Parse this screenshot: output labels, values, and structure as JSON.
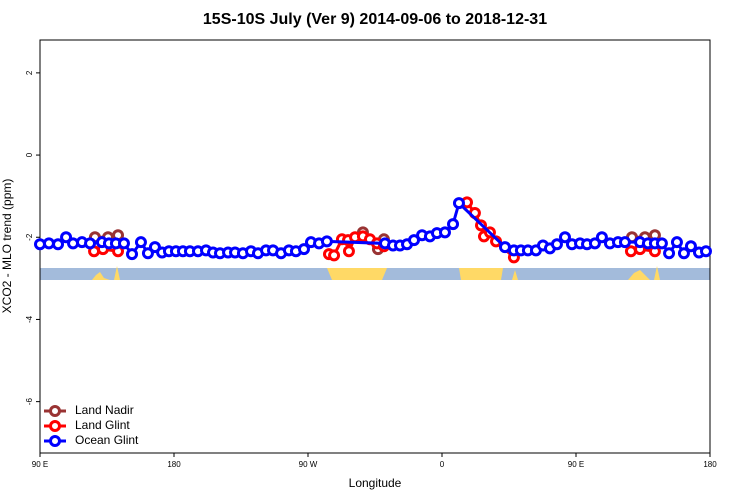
{
  "chart_data": {
    "type": "line",
    "title": "15S-10S July (Ver 9)   2014-09-06 to 2018-12-31",
    "x_label": "Longitude",
    "y_label": "XCO2 - MLO trend (ppm)",
    "xlim": [
      90,
      540
    ],
    "ylim": [
      -7.25,
      2.8
    ],
    "xticks": [
      {
        "value": 90,
        "label": "90 E"
      },
      180,
      {
        "value": 270,
        "label": "90 W"
      },
      {
        "value": 360,
        "label": "0"
      },
      {
        "value": 450,
        "label": "90 E"
      },
      {
        "value": 540,
        "label": "180"
      }
    ],
    "yticks": [
      2,
      0,
      -2,
      -4,
      -6
    ],
    "legend": "bottom-left",
    "series": [
      {
        "name": "Land Nadir",
        "color": "#993333",
        "x": [
          126.9,
          135.7,
          142.4,
          null,
          306.9,
          317.0,
          321.0,
          null,
          487.6,
          496.3,
          503.0
        ],
        "values": [
          -2.0,
          -2.0,
          -1.95,
          null,
          -1.88,
          -2.29,
          -2.05,
          null,
          -2.0,
          -2.0,
          -1.95
        ]
      },
      {
        "name": "Land Glint",
        "color": "#ff0000",
        "x": [
          126.3,
          132.3,
          142.4,
          null,
          284.1,
          287.5,
          292.8,
          296.9,
          297.5,
          301.6,
          306.9,
          311.6,
          316.3,
          321.0,
          null,
          376.8,
          382.1,
          386.2,
          388.2,
          392.2,
          396.3,
          408.3,
          null,
          486.9,
          493.0,
          503.0
        ],
        "values": [
          -2.34,
          -2.29,
          -2.34,
          null,
          -2.41,
          -2.44,
          -2.05,
          -2.07,
          -2.34,
          -2.0,
          -1.98,
          -2.05,
          -2.15,
          -2.22,
          null,
          -1.15,
          -1.41,
          -1.71,
          -1.98,
          -1.88,
          -2.1,
          -2.49,
          null,
          -2.34,
          -2.29,
          -2.34
        ]
      },
      {
        "name": "Ocean Glint",
        "color": "#0000ff",
        "x": [
          90,
          96.0,
          102.1,
          107.5,
          112.2,
          118.2,
          123.6,
          131.6,
          136.3,
          141.0,
          146.4,
          151.8,
          157.8,
          162.5,
          167.2,
          172.0,
          176.6,
          181.3,
          186.0,
          190.7,
          196.1,
          201.5,
          206.2,
          210.9,
          216.3,
          221.0,
          226.3,
          231.7,
          236.4,
          241.8,
          246.5,
          251.9,
          257.2,
          261.9,
          267.3,
          272.0,
          277.4,
          282.7,
          321.7,
          327.1,
          331.8,
          336.5,
          341.2,
          346.6,
          351.9,
          356.6,
          362.0,
          367.4,
          371.4,
          402.3,
          408.3,
          413.0,
          417.7,
          423.1,
          427.8,
          432.5,
          437.2,
          442.6,
          447.3,
          452.7,
          457.4,
          462.7,
          467.4,
          472.8,
          478.2,
          482.9,
          493.0,
          498.3,
          503.0,
          507.7,
          512.5,
          517.8,
          522.5,
          527.2,
          532.6,
          537.3
        ],
        "values": [
          -2.17,
          -2.15,
          -2.17,
          -2.0,
          -2.15,
          -2.12,
          -2.15,
          -2.12,
          -2.15,
          -2.15,
          -2.15,
          -2.41,
          -2.12,
          -2.39,
          -2.24,
          -2.37,
          -2.34,
          -2.34,
          -2.34,
          -2.34,
          -2.34,
          -2.32,
          -2.37,
          -2.39,
          -2.37,
          -2.37,
          -2.39,
          -2.34,
          -2.39,
          -2.32,
          -2.32,
          -2.39,
          -2.32,
          -2.34,
          -2.29,
          -2.12,
          -2.15,
          -2.1,
          -2.15,
          -2.2,
          -2.2,
          -2.17,
          -2.07,
          -1.95,
          -1.98,
          -1.9,
          -1.88,
          -1.68,
          -1.17,
          -2.24,
          -2.32,
          -2.32,
          -2.32,
          -2.32,
          -2.2,
          -2.27,
          -2.17,
          -2.0,
          -2.17,
          -2.15,
          -2.17,
          -2.15,
          -2.0,
          -2.15,
          -2.12,
          -2.12,
          -2.12,
          -2.15,
          -2.15,
          -2.15,
          -2.39,
          -2.12,
          -2.39,
          -2.22,
          -2.37,
          -2.34
        ]
      }
    ]
  }
}
